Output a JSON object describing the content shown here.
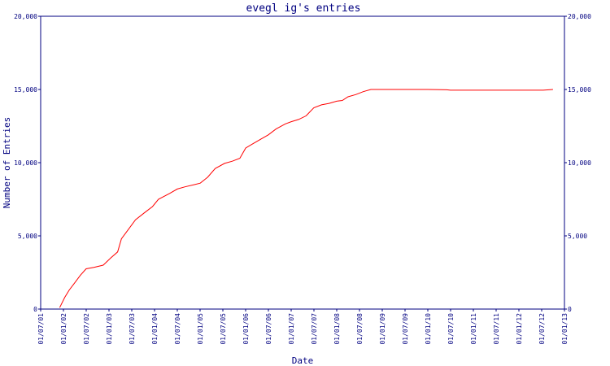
{
  "chart_data": {
    "type": "line",
    "title": "evegl ig's entries",
    "xlabel": "Date",
    "ylabel": "Number of Entries",
    "ylim": [
      0,
      20000
    ],
    "y_ticks": [
      "0",
      "5,000",
      "10,000",
      "15,000",
      "20,000"
    ],
    "y_ticks_right": [
      "0",
      "5,000",
      "10,000",
      "15,000",
      "20,000"
    ],
    "x_ticks": [
      "01/07/01",
      "01/01/02",
      "01/07/02",
      "01/01/03",
      "01/07/03",
      "01/01/04",
      "01/07/04",
      "01/01/05",
      "01/07/05",
      "01/01/06",
      "01/07/06",
      "01/01/07",
      "01/07/07",
      "01/01/08",
      "01/07/08",
      "01/01/09",
      "01/07/09",
      "01/01/10",
      "01/07/10",
      "01/01/11",
      "01/07/11",
      "01/01/12",
      "01/07/12",
      "01/01/13"
    ],
    "x_range": [
      "2001-07-01",
      "2013-01-01"
    ],
    "grid": false,
    "colors": {
      "line": "#ff0000",
      "axis": "#000080",
      "text": "#000080"
    },
    "series": [
      {
        "x": [
          "2001-12-01",
          "2002-01-10",
          "2002-02-15",
          "2002-04-01",
          "2002-05-15",
          "2002-07-01",
          "2002-09-01",
          "2002-11-15",
          "2003-01-15",
          "2003-03-10",
          "2003-04-10",
          "2003-06-01",
          "2003-08-01",
          "2003-10-15",
          "2003-12-15",
          "2004-02-01",
          "2004-05-01",
          "2004-07-01",
          "2004-09-01",
          "2004-11-15",
          "2005-01-01",
          "2005-03-01",
          "2005-05-01",
          "2005-07-15",
          "2005-09-15",
          "2005-11-15",
          "2006-01-01",
          "2006-03-01",
          "2006-05-01",
          "2006-07-01",
          "2006-09-01",
          "2006-11-15",
          "2007-01-01",
          "2007-03-01",
          "2007-05-01",
          "2007-07-01",
          "2007-09-01",
          "2007-11-01",
          "2008-01-01",
          "2008-02-15",
          "2008-04-01",
          "2008-06-01",
          "2008-08-01",
          "2008-10-01",
          "2008-12-01",
          "2009-06-01",
          "2010-01-01",
          "2010-06-01",
          "2010-07-01",
          "2011-01-01",
          "2011-07-01",
          "2012-01-01",
          "2012-06-01",
          "2012-07-15",
          "2012-10-01"
        ],
        "values": [
          100,
          800,
          1300,
          1800,
          2300,
          2750,
          2850,
          3000,
          3500,
          3900,
          4800,
          5400,
          6100,
          6600,
          7000,
          7500,
          7900,
          8200,
          8350,
          8500,
          8600,
          9000,
          9600,
          9950,
          10100,
          10300,
          11000,
          11300,
          11600,
          11900,
          12300,
          12650,
          12800,
          12950,
          13200,
          13750,
          13950,
          14050,
          14200,
          14250,
          14500,
          14650,
          14850,
          15000,
          15000,
          15000,
          15000,
          14980,
          14950,
          14950,
          14950,
          14950,
          14950,
          14950,
          15000
        ]
      }
    ]
  }
}
